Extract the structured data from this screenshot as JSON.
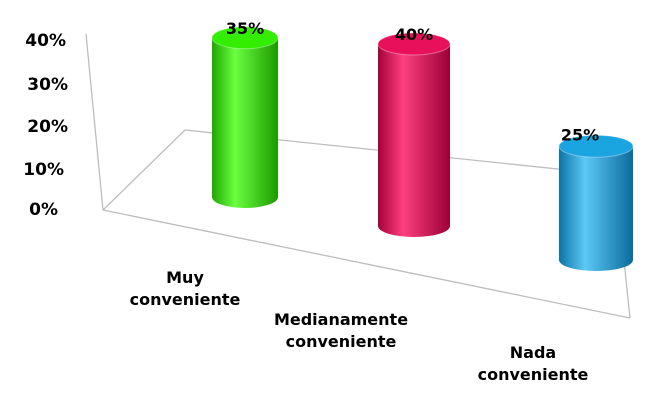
{
  "chart_data": {
    "type": "bar",
    "style": "3d-cylinder",
    "categories": [
      [
        "Muy",
        "conveniente"
      ],
      [
        "Medianamente",
        "conveniente"
      ],
      [
        "Nada",
        "conveniente"
      ]
    ],
    "values": [
      35,
      40,
      25
    ],
    "data_labels": [
      "35%",
      "40%",
      "25%"
    ],
    "colors": [
      "#33ee00",
      "#e8105a",
      "#1aa5e0"
    ],
    "yticks": [
      "0%",
      "10%",
      "20%",
      "30%",
      "40%"
    ],
    "ylim": [
      0,
      40
    ],
    "grid": false,
    "legend": "none"
  }
}
